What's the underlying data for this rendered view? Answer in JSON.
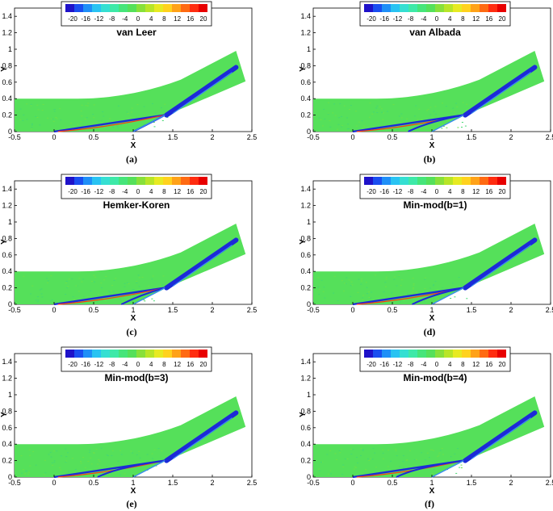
{
  "figure": {
    "colormap": [
      "#1f12c9",
      "#1a4ef0",
      "#1f8ff7",
      "#29c3f2",
      "#35dfd2",
      "#3ee9a8",
      "#46e57a",
      "#55e05a",
      "#88e03a",
      "#b8e528",
      "#e7ea22",
      "#ffd21e",
      "#ffa218",
      "#ff6a12",
      "#ff2d10",
      "#e80000"
    ],
    "background_color": "#55e05a",
    "curves": {
      "shock_color": "#1c2ad8",
      "light_color": "#3a8df0",
      "expansion_color": "#ff3a10"
    }
  },
  "chart_data": [
    {
      "type": "heatmap",
      "panel_label": "(a)",
      "title": "van Leer",
      "xlabel": "X",
      "ylabel": "Y",
      "xlim": [
        -0.5,
        2.5
      ],
      "ylim": [
        0,
        1.5
      ],
      "xticks": [
        "-0.5",
        "0",
        "0.5",
        "1",
        "1.5",
        "2",
        "2.5"
      ],
      "yticks": [
        "0",
        "0.2",
        "0.4",
        "0.6",
        "0.8",
        "1",
        "1.2",
        "1.4"
      ],
      "legend_ticks": [
        "-20",
        "-16",
        "-12",
        "-8",
        "-4",
        "0",
        "4",
        "8",
        "12",
        "16",
        "20"
      ],
      "reflected_shock_x": 1.0
    },
    {
      "type": "heatmap",
      "panel_label": "(b)",
      "title": "van Albada",
      "xlabel": "X",
      "ylabel": "Y",
      "xlim": [
        -0.5,
        2.5
      ],
      "ylim": [
        0,
        1.5
      ],
      "xticks": [
        "-0.5",
        "0",
        "0.5",
        "1",
        "1.5",
        "2",
        "2.5"
      ],
      "yticks": [
        "0",
        "0.2",
        "0.4",
        "0.6",
        "0.8",
        "1",
        "1.2",
        "1.4"
      ],
      "legend_ticks": [
        "-20",
        "-16",
        "-12",
        "-8",
        "-4",
        "0",
        "4",
        "8",
        "12",
        "16",
        "20"
      ],
      "reflected_shock_x": 0.7
    },
    {
      "type": "heatmap",
      "panel_label": "(c)",
      "title": "Hemker-Koren",
      "xlabel": "X",
      "ylabel": "Y",
      "xlim": [
        -0.5,
        2.5
      ],
      "ylim": [
        0,
        1.5
      ],
      "xticks": [
        "-0.5",
        "0",
        "0.5",
        "1",
        "1.5",
        "2",
        "2.5"
      ],
      "yticks": [
        "0",
        "0.2",
        "0.4",
        "0.6",
        "0.8",
        "1",
        "1.2",
        "1.4"
      ],
      "legend_ticks": [
        "-20",
        "-16",
        "-12",
        "-8",
        "-4",
        "0",
        "4",
        "8",
        "12",
        "16",
        "20"
      ],
      "reflected_shock_x": 0.85
    },
    {
      "type": "heatmap",
      "panel_label": "(d)",
      "title": "Min-mod(b=1)",
      "xlabel": "X",
      "ylabel": "Y",
      "xlim": [
        -0.5,
        2.5
      ],
      "ylim": [
        0,
        1.5
      ],
      "xticks": [
        "-0.5",
        "0",
        "0.5",
        "1",
        "1.5",
        "2",
        "2.5"
      ],
      "yticks": [
        "0",
        "0.2",
        "0.4",
        "0.6",
        "0.8",
        "1",
        "1.2",
        "1.4"
      ],
      "legend_ticks": [
        "-20",
        "-16",
        "-12",
        "-8",
        "-4",
        "0",
        "4",
        "8",
        "12",
        "16",
        "20"
      ],
      "reflected_shock_x": 0.75
    },
    {
      "type": "heatmap",
      "panel_label": "(e)",
      "title": "Min-mod(b=3)",
      "xlabel": "X",
      "ylabel": "Y",
      "xlim": [
        -0.5,
        2.5
      ],
      "ylim": [
        0,
        1.5
      ],
      "xticks": [
        "-0.5",
        "0",
        "0.5",
        "1",
        "1.5",
        "2",
        "2.5"
      ],
      "yticks": [
        "0",
        "0.2",
        "0.4",
        "0.6",
        "0.8",
        "1",
        "1.2",
        "1.4"
      ],
      "legend_ticks": [
        "-20",
        "-16",
        "-12",
        "-8",
        "-4",
        "0",
        "4",
        "8",
        "12",
        "16",
        "20"
      ],
      "reflected_shock_x": 0.55
    },
    {
      "type": "heatmap",
      "panel_label": "(f)",
      "title": "Min-mod(b=4)",
      "xlabel": "X",
      "ylabel": "Y",
      "xlim": [
        -0.5,
        2.5
      ],
      "ylim": [
        0,
        1.5
      ],
      "xticks": [
        "-0.5",
        "0",
        "0.5",
        "1",
        "1.5",
        "2",
        "2.5"
      ],
      "yticks": [
        "0",
        "0.2",
        "0.4",
        "0.6",
        "0.8",
        "1",
        "1.2",
        "1.4"
      ],
      "legend_ticks": [
        "-20",
        "-16",
        "-12",
        "-8",
        "-4",
        "0",
        "4",
        "8",
        "12",
        "16",
        "20"
      ],
      "reflected_shock_x": 0.55
    }
  ]
}
